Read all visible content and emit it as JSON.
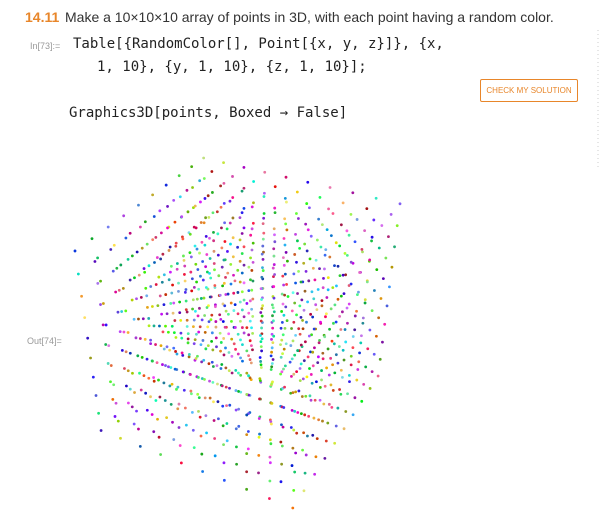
{
  "exercise": {
    "number": "14.11",
    "prompt": "Make a 10×10×10 array of points in 3D, with each point having a random color."
  },
  "input": {
    "label": "In[73]:=",
    "lines": [
      "Table[{RandomColor[], Point[{x, y, z}]}, {x,",
      "1, 10}, {y, 1, 10}, {z, 1, 10}];"
    ]
  },
  "button": "CHECK MY SOLUTION",
  "input2": {
    "line": "Graphics3D[points, Boxed → False]"
  },
  "output": {
    "label": "Out[74]="
  }
}
